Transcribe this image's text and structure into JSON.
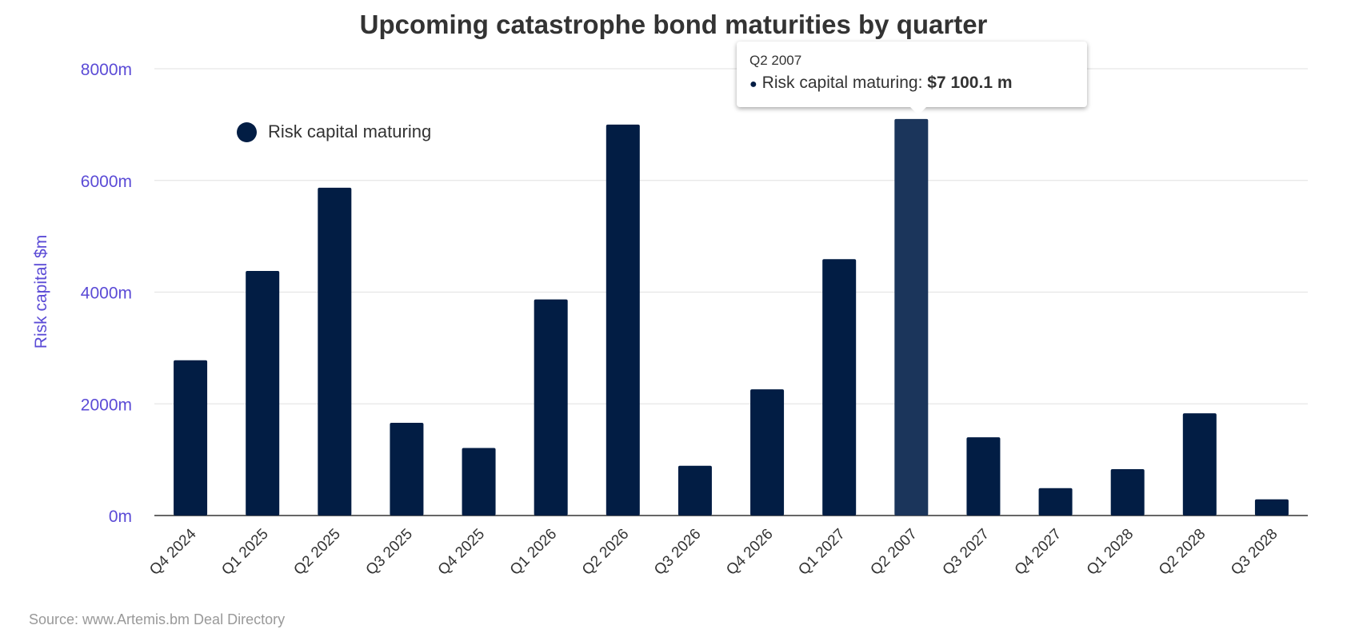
{
  "chart_data": {
    "type": "bar",
    "title": "Upcoming catastrophe bond maturities by quarter",
    "xlabel": "",
    "ylabel": "Risk capital $m",
    "ylim": [
      0,
      8000
    ],
    "yticks": [
      0,
      2000,
      4000,
      6000,
      8000
    ],
    "ytick_labels": [
      "0m",
      "2000m",
      "4000m",
      "6000m",
      "8000m"
    ],
    "grid": true,
    "legend": {
      "position": "top-left",
      "entries": [
        "Risk capital maturing"
      ]
    },
    "categories": [
      "Q4 2024",
      "Q1 2025",
      "Q2 2025",
      "Q3 2025",
      "Q4 2025",
      "Q1 2026",
      "Q2 2026",
      "Q3 2026",
      "Q4 2026",
      "Q1 2027",
      "Q2 2007",
      "Q3 2027",
      "Q4 2027",
      "Q1 2028",
      "Q2 2028",
      "Q3 2028"
    ],
    "series": [
      {
        "name": "Risk capital maturing",
        "values": [
          2780,
          4380,
          5870,
          1660,
          1210,
          3870,
          7000,
          890,
          2260,
          4590,
          7100.1,
          1400,
          490,
          830,
          1830,
          290
        ]
      }
    ],
    "highlighted_index": 10,
    "colors": {
      "bar": "#021d44",
      "bar_hover": "#1b355b",
      "axis_text": "#5b4bd6"
    }
  },
  "tooltip": {
    "header": "Q2 2007",
    "series_label": "Risk capital maturing: ",
    "value": "$7 100.1 m"
  },
  "source": "Source: www.Artemis.bm Deal Directory"
}
